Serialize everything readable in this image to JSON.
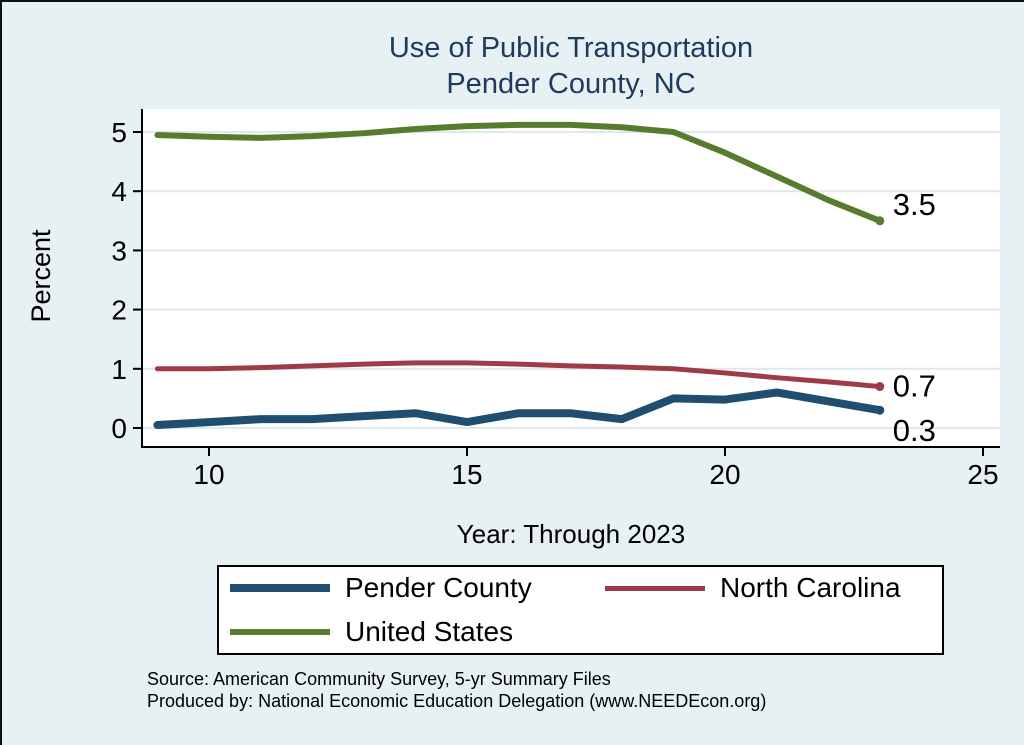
{
  "title": {
    "line1": "Use of Public Transportation",
    "line2": "Pender County, NC"
  },
  "colors": {
    "background": "#e7f0f2",
    "plot_bg": "#ffffff",
    "grid": "#dde9ee",
    "axis": "#000000",
    "title_text": "#1f3a5f",
    "pender": "#1f4e70",
    "nc": "#9d3b46",
    "us": "#587b2e"
  },
  "chart_data": {
    "type": "line",
    "title": "Use of Public Transportation Pender County, NC",
    "xlabel": "Year: Through 2023",
    "ylabel": "Percent",
    "x": [
      9,
      10,
      11,
      12,
      13,
      14,
      15,
      16,
      17,
      18,
      19,
      20,
      21,
      22,
      23
    ],
    "x_ticks": [
      10,
      15,
      20,
      25
    ],
    "y_ticks": [
      0,
      1,
      2,
      3,
      4,
      5
    ],
    "xlim": [
      8.7,
      25.35
    ],
    "ylim": [
      -0.32,
      5.39
    ],
    "grid": "horizontal-only",
    "legend_position": "bottom",
    "series": [
      {
        "name": "Pender County",
        "color_key": "pender",
        "line_width": 8,
        "end_label": "0.3",
        "values": [
          0.05,
          0.1,
          0.15,
          0.15,
          0.2,
          0.25,
          0.1,
          0.25,
          0.25,
          0.15,
          0.5,
          0.48,
          0.6,
          0.45,
          0.3
        ]
      },
      {
        "name": "North Carolina",
        "color_key": "nc",
        "line_width": 5,
        "end_label": "0.7",
        "values": [
          1.0,
          1.0,
          1.02,
          1.05,
          1.08,
          1.1,
          1.1,
          1.08,
          1.05,
          1.03,
          1.0,
          0.93,
          0.85,
          0.78,
          0.7
        ]
      },
      {
        "name": "United States",
        "color_key": "us",
        "line_width": 6,
        "end_label": "3.5",
        "values": [
          4.95,
          4.92,
          4.9,
          4.93,
          4.98,
          5.05,
          5.1,
          5.12,
          5.12,
          5.08,
          5.0,
          4.65,
          4.25,
          3.85,
          3.5
        ]
      }
    ]
  },
  "source": {
    "line1": "Source: American Community Survey, 5-yr Summary Files",
    "line2": "Produced by: National Economic Education Delegation (www.NEEDEcon.org)"
  }
}
